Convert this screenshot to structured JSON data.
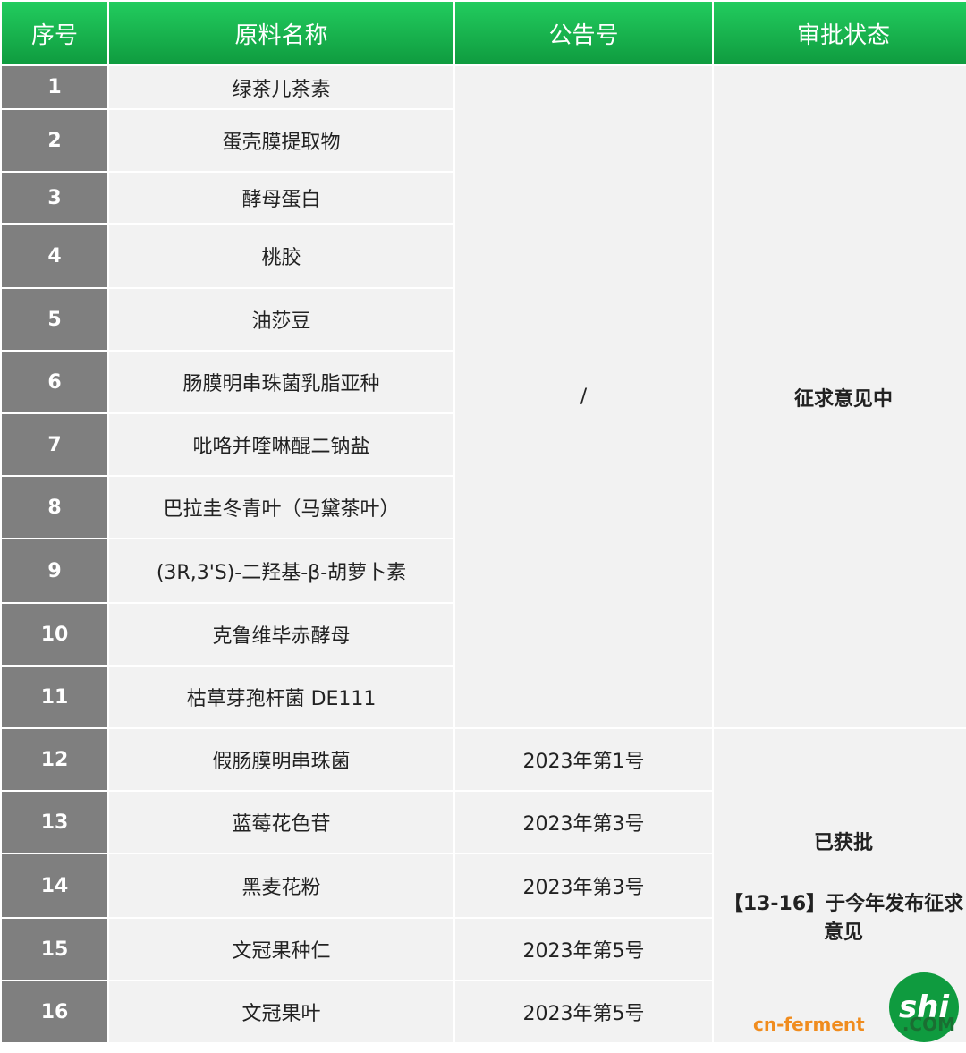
{
  "header": [
    "序号",
    "原料名称",
    "公告号",
    "审批状态"
  ],
  "rows": [
    {
      "no": "1",
      "name": "绿茶儿茶素"
    },
    {
      "no": "2",
      "name": "蛋壳膜提取物"
    },
    {
      "no": "3",
      "name": "酵母蛋白"
    },
    {
      "no": "4",
      "name": "桃胶"
    },
    {
      "no": "5",
      "name": "油莎豆"
    },
    {
      "no": "6",
      "name": "肠膜明串珠菌乳脂亚种"
    },
    {
      "no": "7",
      "name": "吡咯并喹啉醌二钠盐"
    },
    {
      "no": "8",
      "name": "巴拉圭冬青叶（马黛茶叶）"
    },
    {
      "no": "9",
      "name": "(3R,3'S)-二羟基-β-胡萝卜素"
    },
    {
      "no": "10",
      "name": "克鲁维毕赤酵母"
    },
    {
      "no": "11",
      "name": "枯草芽孢杆菌 DE111"
    },
    {
      "no": "12",
      "name": "假肠膜明串珠菌",
      "notice": "2023年第1号"
    },
    {
      "no": "13",
      "name": "蓝莓花色苷",
      "notice": "2023年第3号"
    },
    {
      "no": "14",
      "name": "黑麦花粉",
      "notice": "2023年第3号"
    },
    {
      "no": "15",
      "name": "文冠果种仁",
      "notice": "2023年第5号"
    },
    {
      "no": "16",
      "name": "文冠果叶",
      "notice": "2023年第5号"
    }
  ],
  "merged_notice": "/",
  "status_groups": [
    {
      "lines": [
        "征求意见中"
      ]
    },
    {
      "lines": [
        "已获批",
        "【13-16】于今年发布征求意见"
      ]
    }
  ],
  "watermark": {
    "logo": "shi",
    "text": "cn-ferment",
    "suffix": ".COM"
  }
}
